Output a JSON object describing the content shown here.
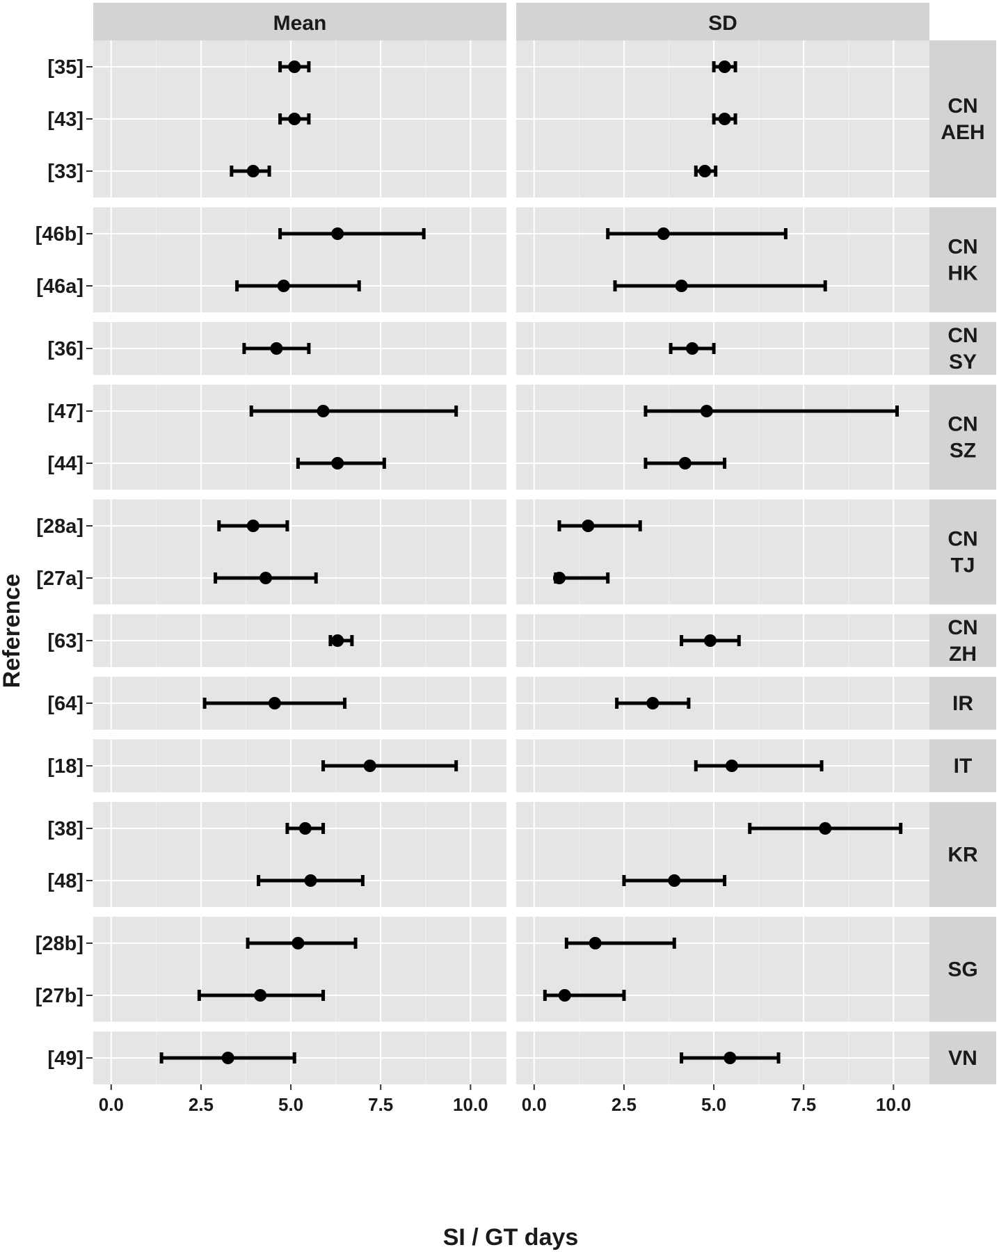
{
  "chart_data": {
    "type": "forest",
    "xlabel": "SI / GT days",
    "ylabel": "Reference",
    "xlim": [
      -0.5,
      11.0
    ],
    "x_ticks": [
      "0.0",
      "2.5",
      "5.0",
      "7.5",
      "10.0"
    ],
    "x_tick_values": [
      0,
      2.5,
      5,
      7.5,
      10
    ],
    "facet_columns": [
      "Mean",
      "SD"
    ],
    "grid": true,
    "colors": {
      "panel": "#e5e5e5",
      "strip": "#d3d3d3",
      "marker": "#000000",
      "grid": "#ffffff"
    },
    "groups": [
      {
        "label_lines": [
          "CN",
          "AEH"
        ],
        "rows": [
          {
            "ref": "[35]",
            "mean": {
              "est": 5.1,
              "lo": 4.7,
              "hi": 5.5
            },
            "sd": {
              "est": 5.3,
              "lo": 5.0,
              "hi": 5.6
            }
          },
          {
            "ref": "[43]",
            "mean": {
              "est": 5.1,
              "lo": 4.7,
              "hi": 5.5
            },
            "sd": {
              "est": 5.3,
              "lo": 5.0,
              "hi": 5.6
            }
          },
          {
            "ref": "[33]",
            "mean": {
              "est": 3.95,
              "lo": 3.35,
              "hi": 4.4
            },
            "sd": {
              "est": 4.75,
              "lo": 4.5,
              "hi": 5.05
            }
          }
        ]
      },
      {
        "label_lines": [
          "CN",
          "HK"
        ],
        "rows": [
          {
            "ref": "[46b]",
            "mean": {
              "est": 6.3,
              "lo": 4.7,
              "hi": 8.7
            },
            "sd": {
              "est": 3.6,
              "lo": 2.05,
              "hi": 7.0
            }
          },
          {
            "ref": "[46a]",
            "mean": {
              "est": 4.8,
              "lo": 3.5,
              "hi": 6.9
            },
            "sd": {
              "est": 4.1,
              "lo": 2.25,
              "hi": 8.1
            }
          }
        ]
      },
      {
        "label_lines": [
          "CN",
          "SY"
        ],
        "rows": [
          {
            "ref": "[36]",
            "mean": {
              "est": 4.6,
              "lo": 3.7,
              "hi": 5.5
            },
            "sd": {
              "est": 4.4,
              "lo": 3.8,
              "hi": 5.0
            }
          }
        ]
      },
      {
        "label_lines": [
          "CN",
          "SZ"
        ],
        "rows": [
          {
            "ref": "[47]",
            "mean": {
              "est": 5.9,
              "lo": 3.9,
              "hi": 9.6
            },
            "sd": {
              "est": 4.8,
              "lo": 3.1,
              "hi": 10.1
            }
          },
          {
            "ref": "[44]",
            "mean": {
              "est": 6.3,
              "lo": 5.2,
              "hi": 7.6
            },
            "sd": {
              "est": 4.2,
              "lo": 3.1,
              "hi": 5.3
            }
          }
        ]
      },
      {
        "label_lines": [
          "CN",
          "TJ"
        ],
        "rows": [
          {
            "ref": "[28a]",
            "mean": {
              "est": 3.95,
              "lo": 3.0,
              "hi": 4.9
            },
            "sd": {
              "est": 1.5,
              "lo": 0.7,
              "hi": 2.95
            }
          },
          {
            "ref": "[27a]",
            "mean": {
              "est": 4.3,
              "lo": 2.9,
              "hi": 5.7
            },
            "sd": {
              "est": 0.7,
              "lo": 0.6,
              "hi": 2.05
            }
          }
        ]
      },
      {
        "label_lines": [
          "CN",
          "ZH"
        ],
        "rows": [
          {
            "ref": "[63]",
            "mean": {
              "est": 6.3,
              "lo": 6.1,
              "hi": 6.7
            },
            "sd": {
              "est": 4.9,
              "lo": 4.1,
              "hi": 5.7
            }
          }
        ]
      },
      {
        "label_lines": [
          "IR"
        ],
        "rows": [
          {
            "ref": "[64]",
            "mean": {
              "est": 4.55,
              "lo": 2.6,
              "hi": 6.5
            },
            "sd": {
              "est": 3.3,
              "lo": 2.3,
              "hi": 4.3
            }
          }
        ]
      },
      {
        "label_lines": [
          "IT"
        ],
        "rows": [
          {
            "ref": "[18]",
            "mean": {
              "est": 7.2,
              "lo": 5.9,
              "hi": 9.6
            },
            "sd": {
              "est": 5.5,
              "lo": 4.5,
              "hi": 8.0
            }
          }
        ]
      },
      {
        "label_lines": [
          "KR"
        ],
        "rows": [
          {
            "ref": "[38]",
            "mean": {
              "est": 5.4,
              "lo": 4.9,
              "hi": 5.9
            },
            "sd": {
              "est": 8.1,
              "lo": 6.0,
              "hi": 10.2
            }
          },
          {
            "ref": "[48]",
            "mean": {
              "est": 5.55,
              "lo": 4.1,
              "hi": 7.0
            },
            "sd": {
              "est": 3.9,
              "lo": 2.5,
              "hi": 5.3
            }
          }
        ]
      },
      {
        "label_lines": [
          "SG"
        ],
        "rows": [
          {
            "ref": "[28b]",
            "mean": {
              "est": 5.2,
              "lo": 3.8,
              "hi": 6.8
            },
            "sd": {
              "est": 1.7,
              "lo": 0.9,
              "hi": 3.9
            }
          },
          {
            "ref": "[27b]",
            "mean": {
              "est": 4.15,
              "lo": 2.45,
              "hi": 5.9
            },
            "sd": {
              "est": 0.85,
              "lo": 0.3,
              "hi": 2.5
            }
          }
        ]
      },
      {
        "label_lines": [
          "VN"
        ],
        "rows": [
          {
            "ref": "[49]",
            "mean": {
              "est": 3.25,
              "lo": 1.4,
              "hi": 5.1
            },
            "sd": {
              "est": 5.45,
              "lo": 4.1,
              "hi": 6.8
            }
          }
        ]
      }
    ]
  }
}
